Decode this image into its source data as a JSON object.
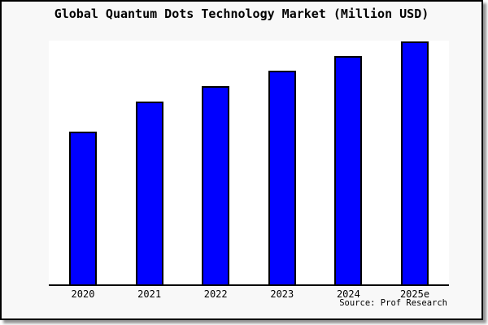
{
  "chart_data": {
    "type": "bar",
    "title": "Global Quantum Dots Technology Market (Million USD)",
    "categories": [
      "2020",
      "2021",
      "2022",
      "2023",
      "2024",
      "2025e"
    ],
    "values": [
      62.7,
      75.0,
      81.3,
      87.7,
      93.7,
      99.7
    ],
    "values_note": "estimated relative bar heights, % of plot height; chart shows no y-axis tick labels or gridlines",
    "xlabel": "",
    "ylabel": "",
    "ylim": [
      0,
      100
    ],
    "grid": false,
    "legend": null,
    "bar_color": "#0000ff",
    "bar_border_color": "#000000",
    "plot_background": "#ffffff",
    "canvas_background": "#f8f8f8",
    "source_note": "Source: Prof Research"
  }
}
